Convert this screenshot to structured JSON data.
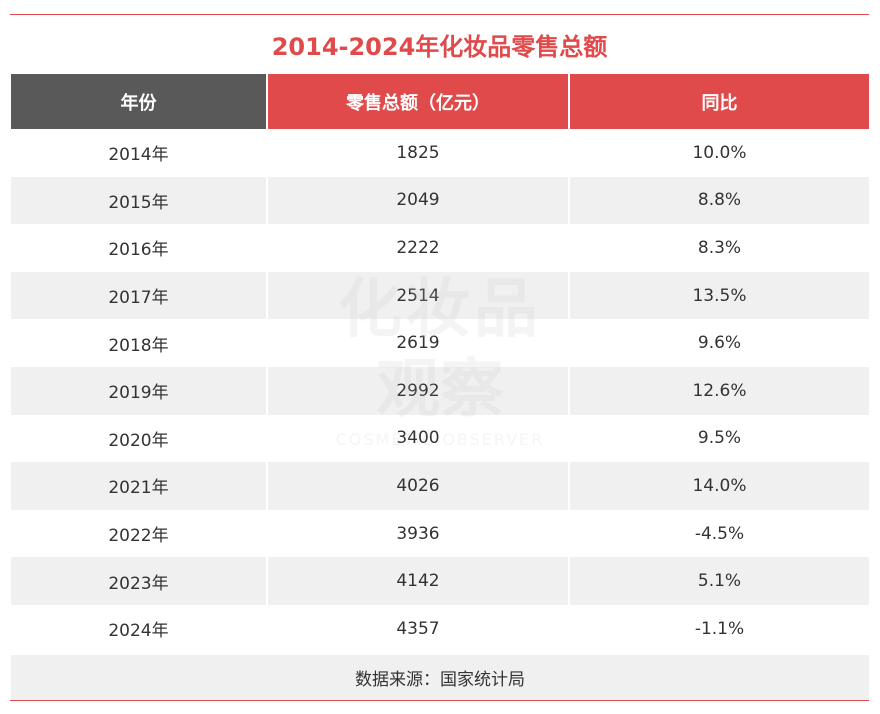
{
  "title": "2014-2024年化妆品零售总额",
  "watermark": {
    "line1": "化妆品",
    "line2": "观察",
    "line3": "COSMETIC OBSERVER"
  },
  "colors": {
    "accent": "#e04a4b",
    "header_dark": "#595959",
    "row_shade": "#f0f0f0"
  },
  "chart_data": {
    "type": "table",
    "title": "2014-2024年化妆品零售总额",
    "columns": [
      "年份",
      "零售总额（亿元）",
      "同比"
    ],
    "rows": [
      [
        "2014年",
        "1825",
        "10.0%"
      ],
      [
        "2015年",
        "2049",
        "8.8%"
      ],
      [
        "2016年",
        "2222",
        "8.3%"
      ],
      [
        "2017年",
        "2514",
        "13.5%"
      ],
      [
        "2018年",
        "2619",
        "9.6%"
      ],
      [
        "2019年",
        "2992",
        "12.6%"
      ],
      [
        "2020年",
        "3400",
        "9.5%"
      ],
      [
        "2021年",
        "4026",
        "14.0%"
      ],
      [
        "2022年",
        "3936",
        "-4.5%"
      ],
      [
        "2023年",
        "4142",
        "5.1%"
      ],
      [
        "2024年",
        "4357",
        "-1.1%"
      ]
    ],
    "source": "数据来源：国家统计局"
  }
}
